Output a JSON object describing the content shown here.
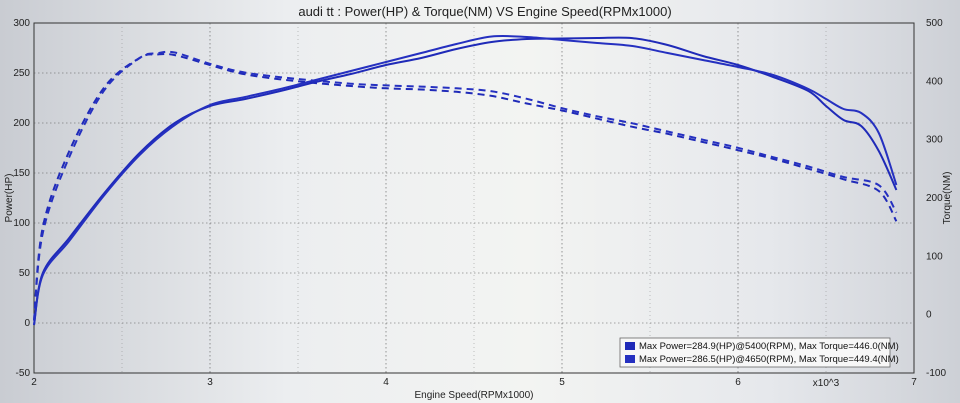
{
  "chart_data": {
    "type": "line",
    "title": "audi tt      : Power(HP) & Torque(NM) VS Engine Speed(RPMx1000)",
    "xlabel": "Engine Speed(RPMx1000)",
    "x_multiplier_label": "x10^3",
    "ylabel_left": "Power(HP)",
    "ylabel_right": "Torque(NM)",
    "xlim": [
      2,
      7
    ],
    "ylim_left": [
      -50,
      300
    ],
    "ylim_right": [
      -100,
      500
    ],
    "x_ticks": [
      "2",
      "3",
      "4",
      "5",
      "6",
      "7"
    ],
    "y_ticks_left": [
      "-50",
      "0",
      "50",
      "100",
      "150",
      "200",
      "250",
      "300"
    ],
    "y_ticks_right": [
      "-100",
      "0",
      "100",
      "200",
      "300",
      "400",
      "500"
    ],
    "grid": true,
    "legend_placement": "bottom-right",
    "legend": [
      "Max Power=284.9(HP)@5400(RPM), Max Torque=446.0(NM)",
      "Max Power=286.5(HP)@4650(RPM), Max Torque=449.4(NM)"
    ],
    "series": [
      {
        "axis": "left",
        "style": "solid",
        "color": "#1f2ab8",
        "x": [
          2.0,
          2.05,
          2.2,
          2.4,
          2.6,
          2.8,
          3.0,
          3.2,
          3.4,
          3.6,
          3.8,
          4.0,
          4.2,
          4.4,
          4.6,
          4.8,
          5.0,
          5.2,
          5.4,
          5.6,
          5.8,
          6.0,
          6.2,
          6.4,
          6.5,
          6.6,
          6.7,
          6.8,
          6.9
        ],
        "values": [
          -2,
          50,
          85,
          130,
          170,
          200,
          217,
          224,
          232,
          241,
          249,
          258,
          265,
          274,
          281,
          284,
          284.5,
          285,
          284.9,
          278,
          267,
          258,
          246,
          232,
          217,
          203,
          197,
          172,
          133
        ]
      },
      {
        "axis": "left",
        "style": "solid",
        "color": "#2530c0",
        "x": [
          2.0,
          2.05,
          2.2,
          2.4,
          2.6,
          2.8,
          3.0,
          3.2,
          3.4,
          3.6,
          3.8,
          4.0,
          4.2,
          4.4,
          4.6,
          4.8,
          5.0,
          5.2,
          5.4,
          5.6,
          5.8,
          6.0,
          6.2,
          6.4,
          6.5,
          6.6,
          6.7,
          6.8,
          6.9
        ],
        "values": [
          -2,
          48,
          82,
          128,
          168,
          198,
          218,
          226,
          234,
          243,
          252,
          261,
          270,
          279,
          286.5,
          286,
          283,
          280,
          277,
          270,
          263,
          256,
          248,
          234,
          224,
          214,
          210,
          190,
          138
        ]
      },
      {
        "axis": "right",
        "style": "dashed",
        "color": "#1f2ab8",
        "x": [
          2.0,
          2.05,
          2.2,
          2.4,
          2.6,
          2.7,
          2.8,
          3.0,
          3.2,
          3.5,
          3.8,
          4.0,
          4.2,
          4.4,
          4.6,
          4.8,
          5.0,
          5.2,
          5.4,
          5.6,
          5.8,
          6.0,
          6.2,
          6.4,
          6.6,
          6.8,
          6.9
        ],
        "values": [
          -10,
          150,
          280,
          390,
          440,
          446,
          445,
          428,
          412,
          400,
          392,
          388,
          386,
          382,
          375,
          362,
          350,
          336,
          322,
          310,
          296,
          282,
          267,
          250,
          232,
          212,
          160
        ]
      },
      {
        "axis": "right",
        "style": "dashed",
        "color": "#2530c0",
        "x": [
          2.0,
          2.05,
          2.2,
          2.4,
          2.6,
          2.7,
          2.8,
          3.0,
          3.2,
          3.5,
          3.8,
          4.0,
          4.2,
          4.4,
          4.6,
          4.8,
          5.0,
          5.2,
          5.4,
          5.6,
          5.8,
          6.0,
          6.2,
          6.4,
          6.6,
          6.8,
          6.9
        ],
        "values": [
          -10,
          140,
          270,
          385,
          440,
          448,
          449.4,
          430,
          415,
          404,
          396,
          393,
          391,
          388,
          383,
          370,
          354,
          340,
          328,
          314,
          300,
          286,
          270,
          254,
          236,
          222,
          175
        ]
      }
    ]
  }
}
